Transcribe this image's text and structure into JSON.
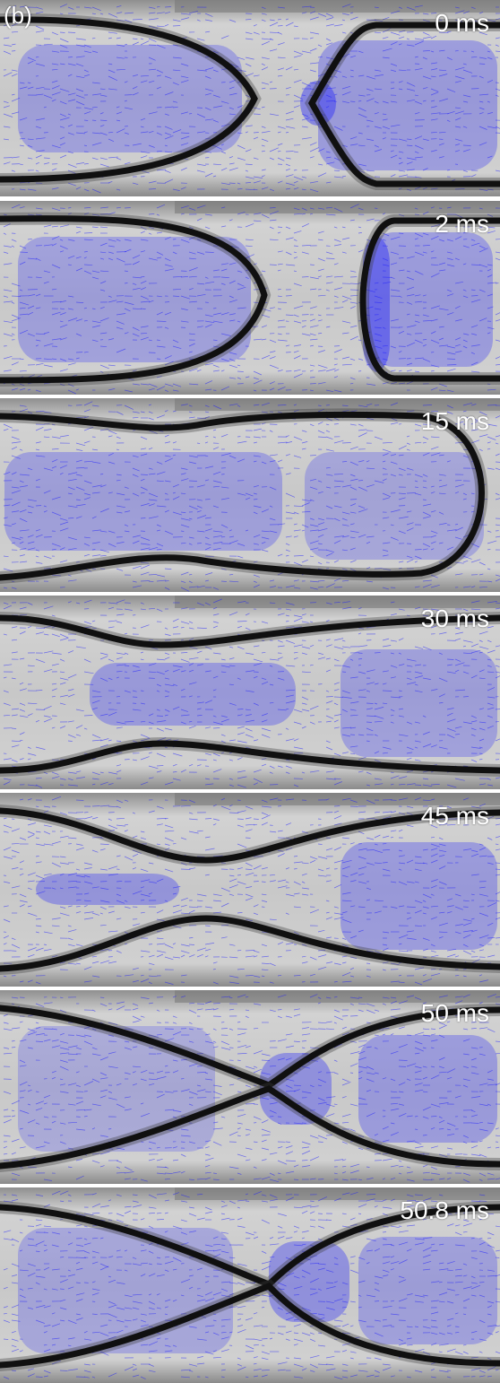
{
  "figure": {
    "panel_label": "(b)",
    "accent_color": "#1a1aff",
    "interface_color": "#101010",
    "background_color": "#c4c4c4",
    "frames": [
      {
        "time_label": "0 ms"
      },
      {
        "time_label": "2 ms"
      },
      {
        "time_label": "15 ms"
      },
      {
        "time_label": "30 ms"
      },
      {
        "time_label": "45 ms"
      },
      {
        "time_label": "50 ms"
      },
      {
        "time_label": "50.8 ms"
      }
    ]
  }
}
